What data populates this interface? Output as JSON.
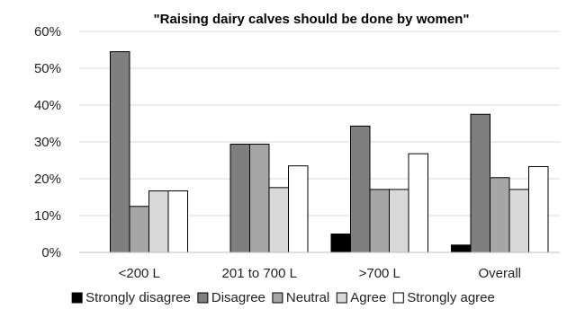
{
  "chart_data": {
    "type": "bar",
    "title": "\"Raising dairy calves should be done by women\"",
    "xlabel": "",
    "ylabel": "",
    "categories": [
      "<200 L",
      "201 to 700 L",
      ">700 L",
      "Overall"
    ],
    "series": [
      {
        "name": "Strongly disagree",
        "color": "#000000",
        "values": [
          0,
          0,
          5,
          2
        ]
      },
      {
        "name": "Disagree",
        "color": "#7f7f7f",
        "values": [
          54.5,
          29.4,
          34.3,
          37.5
        ]
      },
      {
        "name": "Neutral",
        "color": "#a6a6a6",
        "values": [
          12.5,
          29.4,
          17.1,
          20.3
        ]
      },
      {
        "name": "Agree",
        "color": "#d9d9d9",
        "values": [
          16.7,
          17.6,
          17.1,
          17.1
        ]
      },
      {
        "name": "Strongly agree",
        "color": "#ffffff",
        "values": [
          16.7,
          23.5,
          26.8,
          23.3
        ]
      }
    ],
    "ylim": [
      0,
      60
    ],
    "yticks": [
      "0%",
      "10%",
      "20%",
      "30%",
      "40%",
      "50%",
      "60%"
    ],
    "ytick_values": [
      0,
      10,
      20,
      30,
      40,
      50,
      60
    ],
    "grid": true,
    "legend_position": "bottom"
  }
}
